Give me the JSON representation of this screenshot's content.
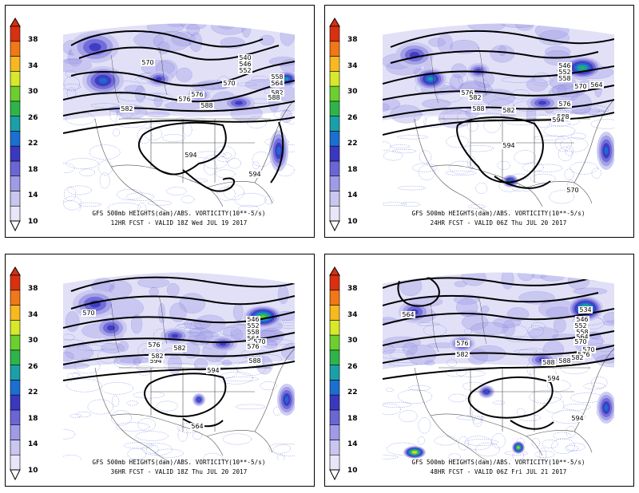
{
  "colorbar": {
    "labels": [
      "38",
      "34",
      "30",
      "26",
      "22",
      "18",
      "14",
      "10"
    ]
  },
  "panels": [
    {
      "id": "p12",
      "title": "GFS 500mb HEIGHTS(dam)/ABS. VORTICITY(10**-5/s)",
      "subtitle": "12HR FCST  -  VALID  18Z  Wed JUL 19 2017",
      "contour_labels": [
        "540",
        "546",
        "552",
        "558",
        "564",
        "570",
        "576",
        "582",
        "588",
        "594",
        "594",
        "570",
        "576",
        "582",
        "588"
      ]
    },
    {
      "id": "p24",
      "title": "GFS 500mb HEIGHTS(dam)/ABS. VORTICITY(10**-5/s)",
      "subtitle": "24HR FCST  -  VALID  06Z  Thu JUL 20 2017",
      "contour_labels": [
        "546",
        "552",
        "558",
        "564",
        "570",
        "576",
        "582",
        "588",
        "594",
        "594",
        "570",
        "576",
        "582",
        "588"
      ]
    },
    {
      "id": "p36",
      "title": "GFS 500mb HEIGHTS(dam)/ABS. VORTICITY(10**-5/s)",
      "subtitle": "36HR FCST  -  VALID  18Z  Thu JUL 20 2017",
      "contour_labels": [
        "546",
        "552",
        "558",
        "564",
        "570",
        "576",
        "582",
        "588",
        "594",
        "594",
        "564",
        "570",
        "576",
        "582",
        "588"
      ]
    },
    {
      "id": "p48",
      "title": "GFS 500mb HEIGHTS(dam)/ABS. VORTICITY(10**-5/s)",
      "subtitle": "48HR FCST  -  VALID  06Z  Fri JUL 21 2017",
      "contour_labels": [
        "534",
        "546",
        "552",
        "558",
        "564",
        "570",
        "576",
        "582",
        "588",
        "594",
        "594",
        "564",
        "570",
        "576",
        "582",
        "588"
      ]
    }
  ],
  "colors": {
    "scale": [
      "#e8e6f8",
      "#c9c6f0",
      "#9f9be6",
      "#6b66d6",
      "#3b38c0",
      "#1b6fd0",
      "#1aa0a8",
      "#2fb44a",
      "#6ccf2e",
      "#d8e82a",
      "#f8b820",
      "#f07818",
      "#d83010"
    ]
  }
}
